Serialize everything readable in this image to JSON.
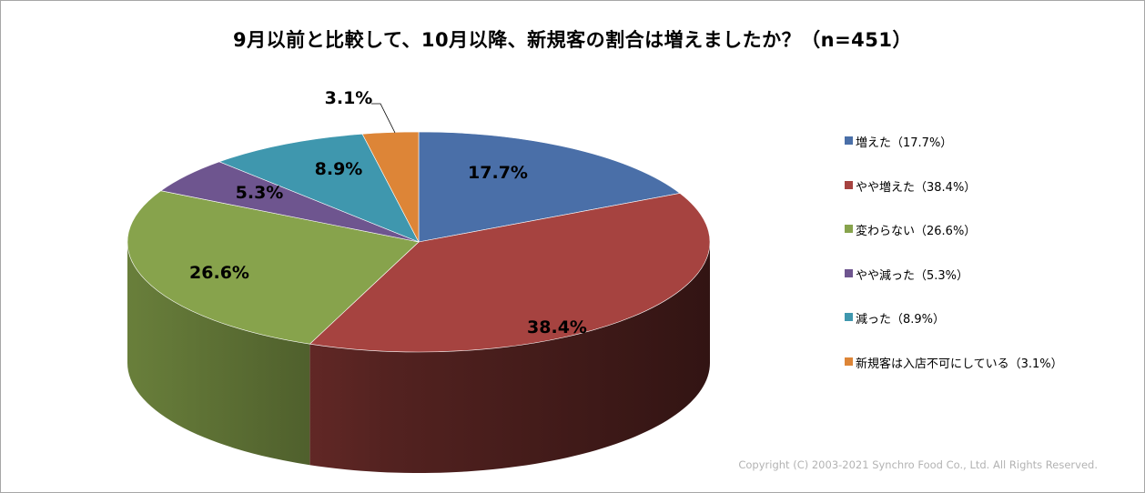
{
  "chart_data": {
    "type": "pie",
    "title": "9月以前と比較して、10月以降、新規客の割合は増えましたか？（n=451）",
    "slices": [
      {
        "label": "増えた（17.7%）",
        "value": 17.7,
        "data_label": "17.7%",
        "color": "#4a6fa8"
      },
      {
        "label": "やや増えた（38.4%）",
        "value": 38.4,
        "data_label": "38.4%",
        "color": "#a64340"
      },
      {
        "label": "変わらない（26.6%）",
        "value": 26.6,
        "data_label": "26.6%",
        "color": "#87a34c"
      },
      {
        "label": "やや減った（5.3%）",
        "value": 5.3,
        "data_label": "5.3%",
        "color": "#6e558f"
      },
      {
        "label": "減った（8.9%）",
        "value": 8.9,
        "data_label": "8.9%",
        "color": "#3f97ae"
      },
      {
        "label": "新規客は入店不可にしている（3.1%）",
        "value": 3.1,
        "data_label": "3.1%",
        "color": "#dd8537"
      }
    ],
    "legend_position": "right",
    "style": "3d-pie"
  },
  "footer": {
    "copyright": "Copyright (C) 2003-2021   Synchro Food Co., Ltd. All Rights Reserved."
  }
}
